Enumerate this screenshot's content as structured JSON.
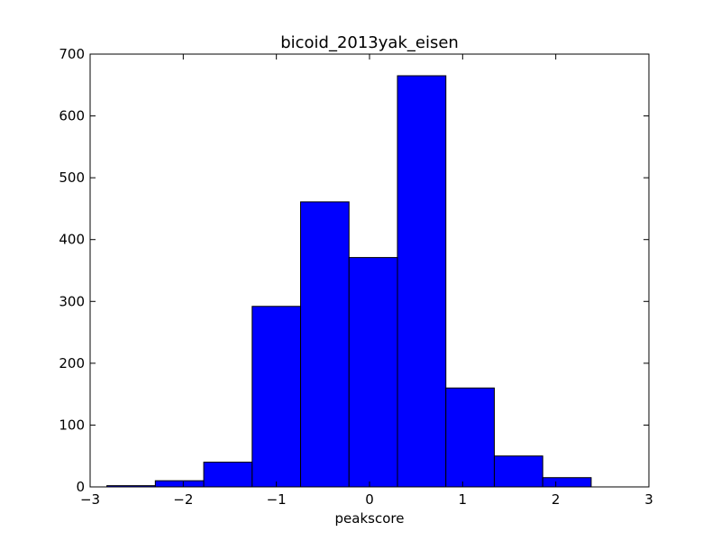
{
  "chart_data": {
    "type": "bar",
    "title": "bicoid_2013yak_eisen",
    "xlabel": "peakscore",
    "ylabel": "",
    "xlim": [
      -3,
      3
    ],
    "ylim": [
      0,
      700
    ],
    "xticks": [
      -3,
      -2,
      -1,
      0,
      1,
      2,
      3
    ],
    "xtick_labels": [
      "−3",
      "−2",
      "−1",
      "0",
      "1",
      "2",
      "3"
    ],
    "yticks": [
      0,
      100,
      200,
      300,
      400,
      500,
      600,
      700
    ],
    "ytick_labels": [
      "0",
      "100",
      "200",
      "300",
      "400",
      "500",
      "600",
      "700"
    ],
    "bin_edges": [
      -2.82,
      -2.3,
      -1.78,
      -1.26,
      -0.74,
      -0.22,
      0.3,
      0.82,
      1.34,
      1.86,
      2.38
    ],
    "values": [
      2,
      10,
      40,
      292,
      461,
      371,
      665,
      160,
      50,
      15
    ],
    "bar_color": "#0000ff",
    "edge_color": "#000000",
    "grid": false,
    "legend": "none"
  }
}
